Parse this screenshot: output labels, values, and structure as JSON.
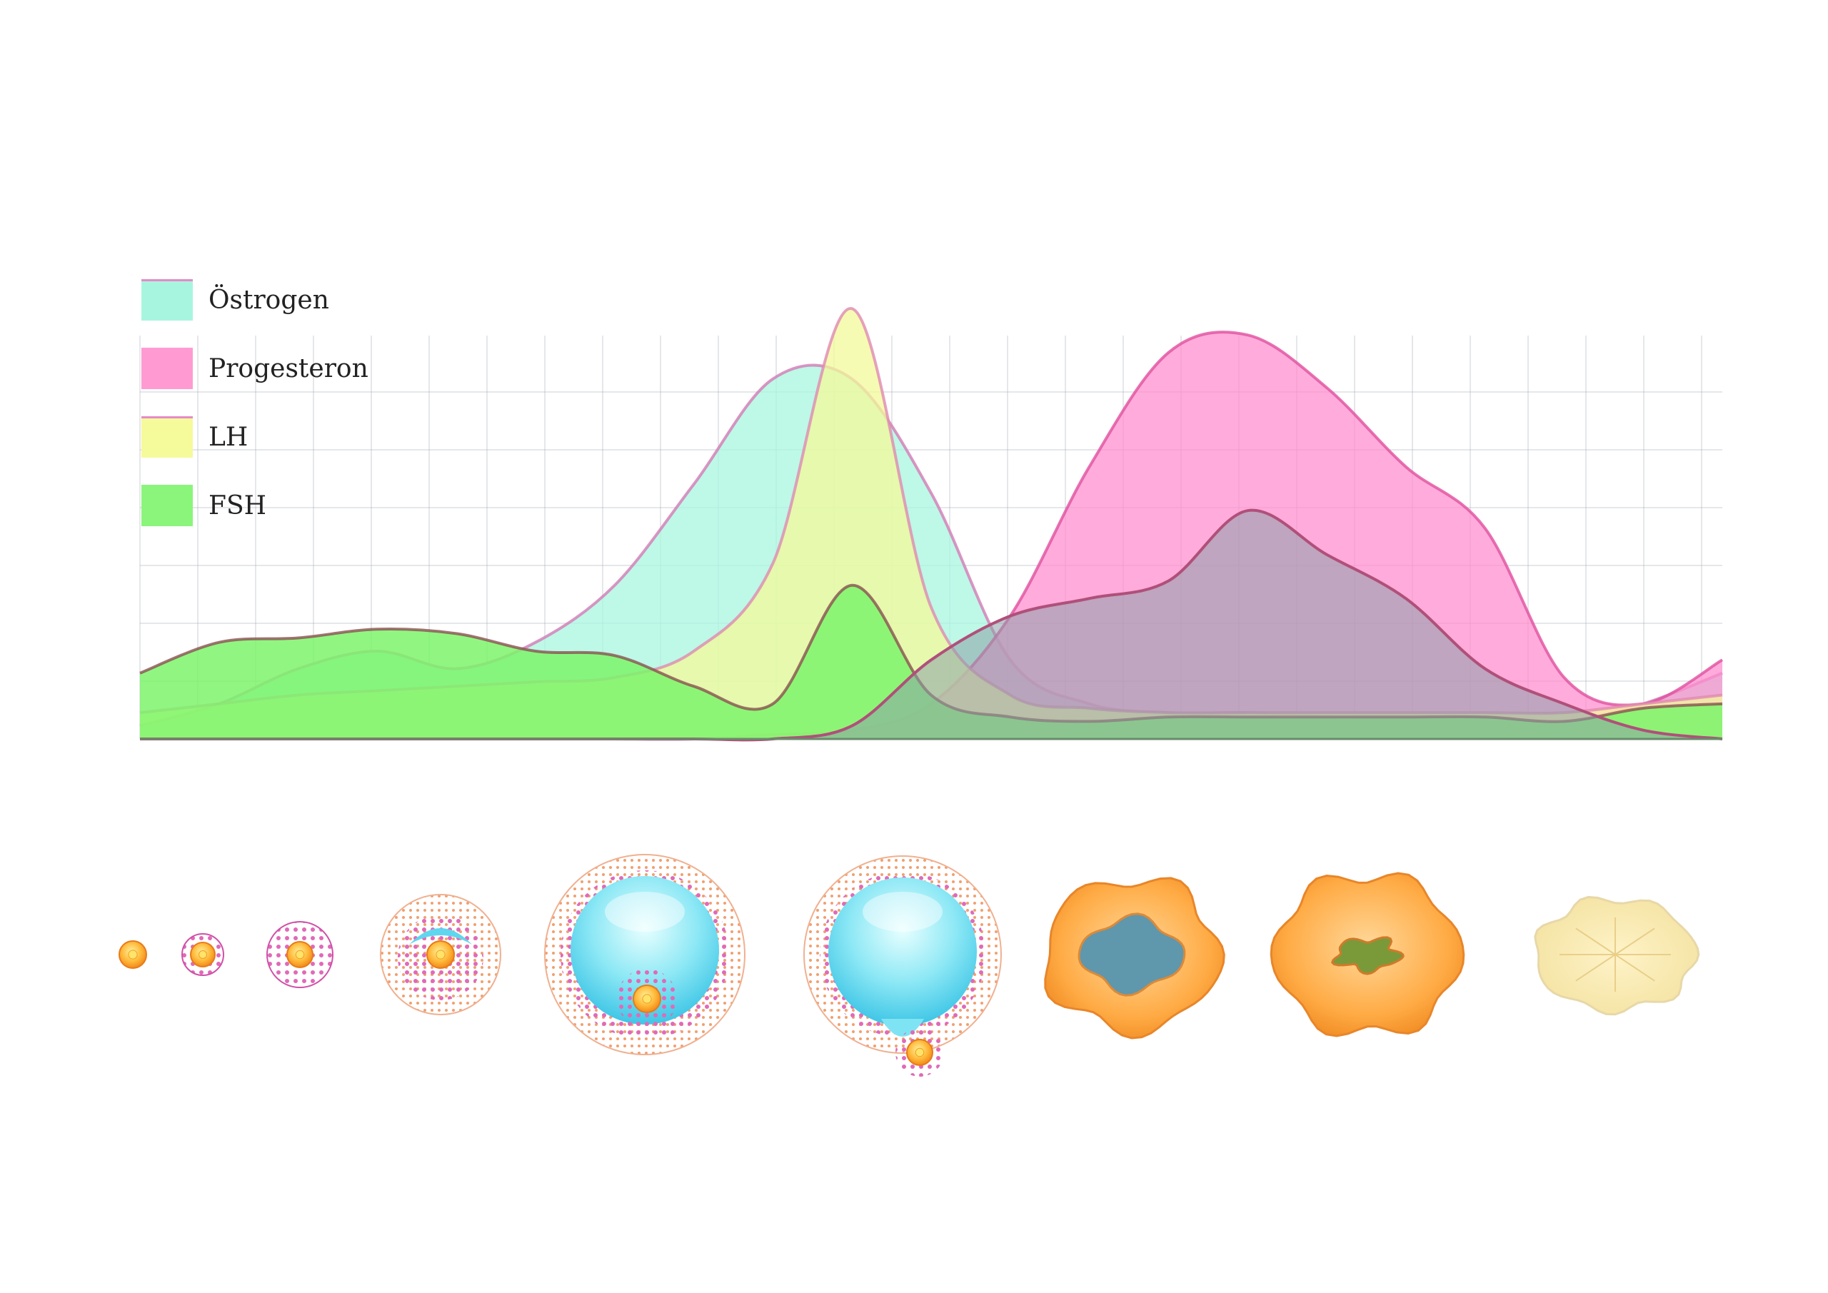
{
  "legend": [
    {
      "label": "Östrogen",
      "color": "#a8f5df",
      "line": "#e58ac8"
    },
    {
      "label": "Progesteron",
      "color": "#ff9bd2",
      "line": "#ff9bd2"
    },
    {
      "label": "LH",
      "color": "#f5fa9a",
      "line": "#e58ac8"
    },
    {
      "label": "FSH",
      "color": "#8af57a",
      "line": "#8af57a"
    }
  ],
  "chart_data": {
    "type": "area",
    "title": "",
    "xlabel": "",
    "ylabel": "",
    "grid": true,
    "legend_position": "top-left",
    "ylim": [
      0,
      100
    ],
    "x": [
      0,
      5,
      10,
      15,
      20,
      25,
      30,
      35,
      40,
      45,
      50,
      55,
      60,
      65,
      70,
      75,
      80,
      85,
      90,
      95,
      100
    ],
    "series": [
      {
        "name": "Östrogen",
        "color": "#a8f5df",
        "values": [
          3,
          8,
          16,
          20,
          16,
          22,
          35,
          58,
          82,
          82,
          56,
          18,
          8,
          6,
          6,
          5,
          5,
          4,
          4,
          8,
          15
        ]
      },
      {
        "name": "Progesteron",
        "color": "#ff8fcf",
        "values": [
          0,
          0,
          0,
          0,
          0,
          0,
          0,
          0,
          1,
          2,
          8,
          28,
          62,
          88,
          92,
          80,
          62,
          48,
          14,
          8,
          18
        ]
      },
      {
        "name": "LH",
        "color": "#f3f99a",
        "values": [
          6,
          8,
          10,
          11,
          12,
          13,
          14,
          20,
          40,
          98,
          30,
          10,
          7,
          6,
          6,
          6,
          6,
          6,
          6,
          8,
          10
        ]
      },
      {
        "name": "FSH",
        "color": "#7df56b",
        "values": [
          15,
          22,
          23,
          25,
          24,
          20,
          19,
          12,
          8,
          35,
          10,
          5,
          4,
          5,
          5,
          5,
          5,
          5,
          4,
          7,
          8
        ]
      }
    ],
    "series_extra_curve": {
      "name": "",
      "values": [
        0,
        0,
        0,
        0,
        0,
        0,
        0,
        0,
        0,
        3,
        18,
        28,
        32,
        36,
        52,
        42,
        32,
        16,
        8,
        2,
        0
      ]
    }
  },
  "follicle_stages": [
    {
      "stage": "primordial"
    },
    {
      "stage": "primary"
    },
    {
      "stage": "secondary"
    },
    {
      "stage": "early-antral"
    },
    {
      "stage": "antral"
    },
    {
      "stage": "ovulation"
    },
    {
      "stage": "corpus-luteum-early"
    },
    {
      "stage": "corpus-luteum"
    },
    {
      "stage": "corpus-albicans"
    }
  ]
}
